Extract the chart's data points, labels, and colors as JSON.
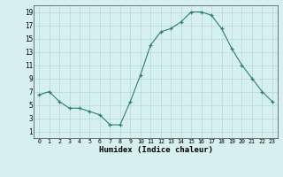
{
  "x": [
    0,
    1,
    2,
    3,
    4,
    5,
    6,
    7,
    8,
    9,
    10,
    11,
    12,
    13,
    14,
    15,
    16,
    17,
    18,
    19,
    20,
    21,
    22,
    23
  ],
  "y": [
    6.5,
    7.0,
    5.5,
    4.5,
    4.5,
    4.0,
    3.5,
    2.0,
    2.0,
    5.5,
    9.5,
    14.0,
    16.0,
    16.5,
    17.5,
    19.0,
    19.0,
    18.5,
    16.5,
    13.5,
    11.0,
    9.0,
    7.0,
    5.5
  ],
  "xlabel": "Humidex (Indice chaleur)",
  "line_color": "#2e7d6e",
  "bg_color": "#d6f0f0",
  "grid_color": "#b8d8d8",
  "xlim": [
    -0.5,
    23.5
  ],
  "ylim": [
    0,
    20
  ],
  "xticks": [
    0,
    1,
    2,
    3,
    4,
    5,
    6,
    7,
    8,
    9,
    10,
    11,
    12,
    13,
    14,
    15,
    16,
    17,
    18,
    19,
    20,
    21,
    22,
    23
  ],
  "yticks": [
    1,
    3,
    5,
    7,
    9,
    11,
    13,
    15,
    17,
    19
  ]
}
